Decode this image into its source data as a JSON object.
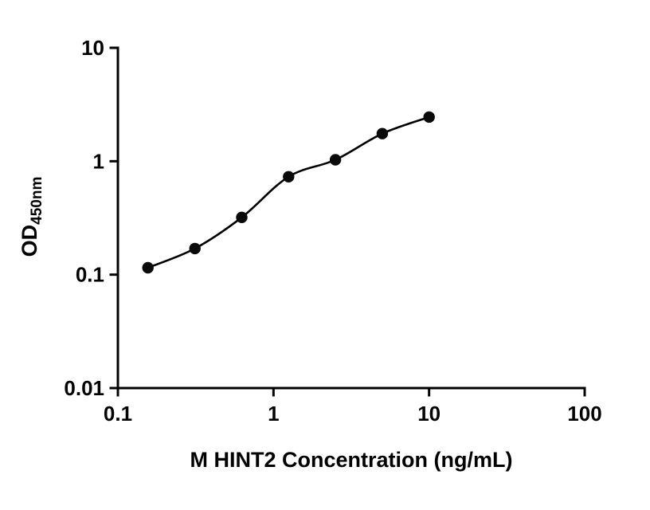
{
  "figure": {
    "background_color": "#ffffff",
    "line_color": "#000000"
  },
  "chart_data": {
    "type": "scatter",
    "title": "",
    "xlabel": "M HINT2 Concentration (ng/mL)",
    "ylabel_main": "OD",
    "ylabel_sub": "450nm",
    "xscale": "log",
    "yscale": "log",
    "xlim": [
      0.1,
      100
    ],
    "ylim": [
      0.01,
      10
    ],
    "grid": false,
    "legend": "none",
    "x": [
      0.156,
      0.3125,
      0.625,
      1.25,
      2.5,
      5,
      10
    ],
    "y": [
      0.115,
      0.17,
      0.32,
      0.73,
      1.03,
      1.75,
      2.45
    ],
    "xticks": [
      {
        "v": 0.1,
        "label": "0.1"
      },
      {
        "v": 1,
        "label": "1"
      },
      {
        "v": 10,
        "label": "10"
      },
      {
        "v": 100,
        "label": "100"
      }
    ],
    "yticks": [
      {
        "v": 10,
        "label": "10"
      },
      {
        "v": 1,
        "label": "1"
      },
      {
        "v": 0.1,
        "label": "0.1"
      },
      {
        "v": 0.01,
        "label": "0.01"
      }
    ],
    "marker": {
      "shape": "circle",
      "radius": 7.2,
      "color": "#0a0a0a"
    },
    "curve": {
      "style": "smooth-fit",
      "color": "#000000"
    }
  }
}
